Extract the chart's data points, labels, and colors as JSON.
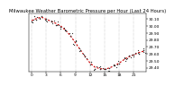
{
  "title": "Milwaukee Weather Barometric Pressure per Hour (Last 24 Hours)",
  "hours": [
    0,
    1,
    2,
    3,
    4,
    5,
    6,
    7,
    8,
    9,
    10,
    11,
    12,
    13,
    14,
    15,
    16,
    17,
    18,
    19,
    20,
    21,
    22,
    23
  ],
  "pressure": [
    30.08,
    30.11,
    30.13,
    30.1,
    30.07,
    30.04,
    30.0,
    29.94,
    29.86,
    29.76,
    29.66,
    29.56,
    29.47,
    29.41,
    29.39,
    29.38,
    29.4,
    29.43,
    29.47,
    29.52,
    29.56,
    29.59,
    29.62,
    29.64
  ],
  "line_color": "#cc0000",
  "dot_color": "#333333",
  "bg_color": "#ffffff",
  "grid_color": "#999999",
  "ylim": [
    29.35,
    30.18
  ],
  "ytick_values": [
    29.4,
    29.5,
    29.6,
    29.7,
    29.8,
    29.9,
    30.0,
    30.1
  ],
  "ytick_labels": [
    "29.40",
    "29.50",
    "29.60",
    "29.70",
    "29.80",
    "29.90",
    "30.00",
    "30.10"
  ],
  "xlim": [
    -0.5,
    23.5
  ],
  "xtick_positions": [
    0,
    3,
    6,
    9,
    12,
    15,
    18,
    21
  ],
  "xtick_labels": [
    "0",
    "3",
    "6",
    "9",
    "12",
    "15",
    "18",
    "21"
  ],
  "vgrid_positions": [
    0,
    3,
    6,
    9,
    12,
    15,
    18,
    21
  ],
  "title_fontsize": 3.8,
  "tick_fontsize": 3.2,
  "line_width": 0.8,
  "dot_size": 1.2,
  "extra_dot_size": 0.8,
  "seed": 42,
  "n_extra_per_hour": [
    2,
    3,
    2,
    3,
    2,
    3,
    2,
    3,
    2,
    3,
    2,
    3,
    2,
    3,
    2,
    3,
    2,
    3,
    2,
    3,
    2,
    3,
    2,
    3
  ]
}
